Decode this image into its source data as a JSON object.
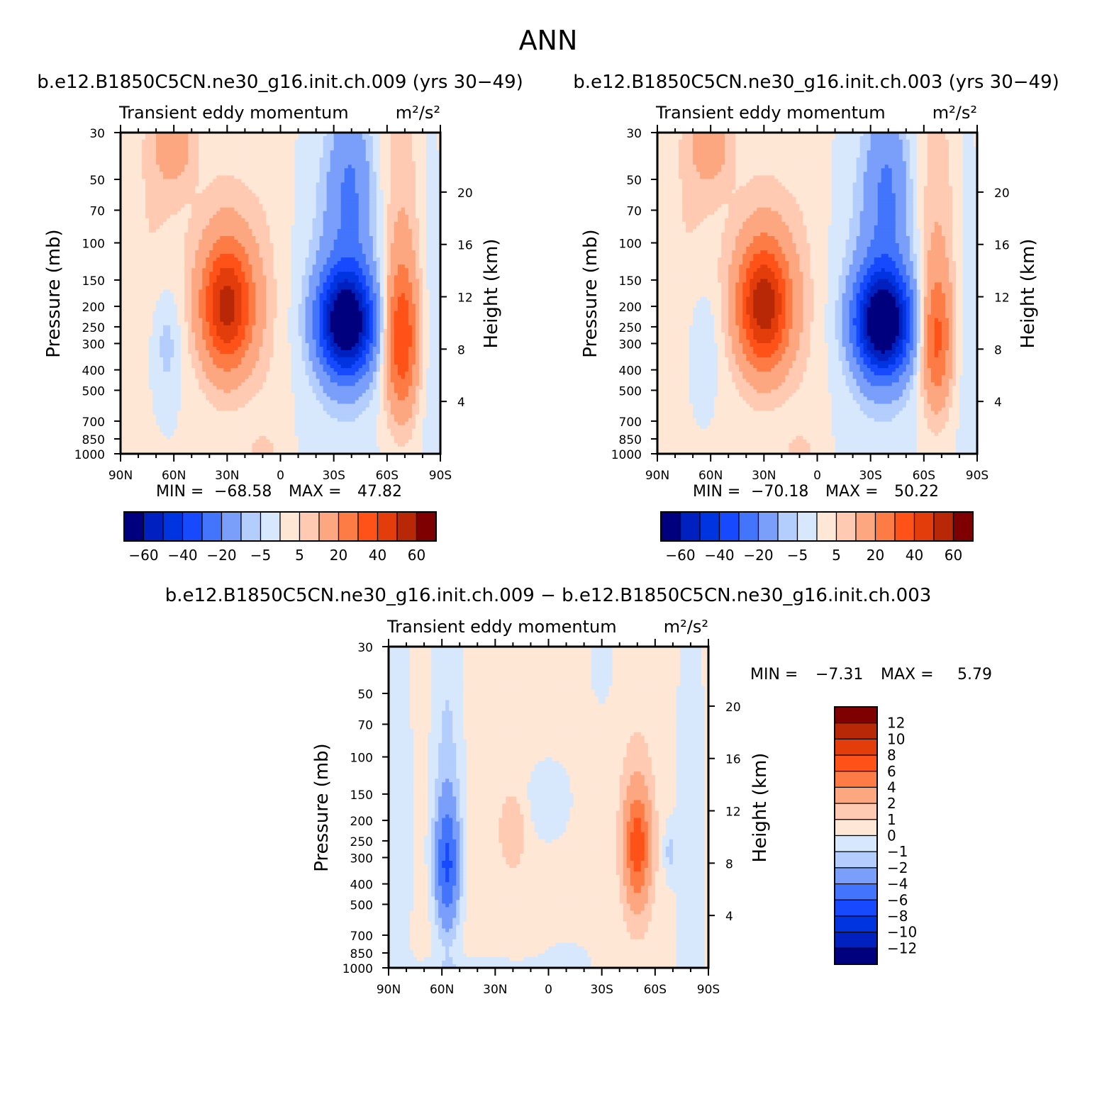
{
  "page": {
    "title": "ANN",
    "bottom_title": "b.e12.B1850C5CN.ne30_g16.init.ch.009 − b.e12.B1850C5CN.ne30_g16.init.ch.003"
  },
  "axes_common": {
    "left_label": "Pressure (mb)",
    "right_label": "Height (km)",
    "pressure_ticks": [
      30,
      50,
      70,
      100,
      150,
      200,
      250,
      300,
      400,
      500,
      700,
      850,
      1000
    ],
    "height_ticks": [
      4,
      8,
      12,
      16,
      20
    ],
    "lat_ticks": [
      "90N",
      "60N",
      "30N",
      "0",
      "30S",
      "60S",
      "90S"
    ],
    "lat_values": [
      90,
      60,
      30,
      0,
      -30,
      -60,
      -90
    ]
  },
  "chart_data": [
    {
      "id": "panel1",
      "type": "heatmap",
      "plot_type": "filled-contour",
      "title": "b.e12.B1850C5CN.ne30_g16.init.ch.009 (yrs 30−49)",
      "subtitle_left": "Transient eddy momentum",
      "units": "m²/s²",
      "xlabel": "",
      "ylabel": "Pressure (mb)",
      "ylabel_right": "Height (km)",
      "xlim": [
        90,
        -90
      ],
      "ylim": [
        1000,
        30
      ],
      "y_scale": "log",
      "min_label": "MIN =",
      "min_value": "−68.58",
      "max_label": "MAX =",
      "max_value": "47.82",
      "min": -68.58,
      "max": 47.82,
      "features": [
        {
          "lat": -37,
          "p": 240,
          "value": -68,
          "lat_width": 11,
          "logp_width": 0.17
        },
        {
          "lat": -37,
          "p": 140,
          "value": -15,
          "lat_width": 13,
          "logp_width": 0.42
        },
        {
          "lat": -40,
          "p": 45,
          "value": -16,
          "lat_width": 9,
          "logp_width": 0.28
        },
        {
          "lat": 30,
          "p": 200,
          "value": 46,
          "lat_width": 10,
          "logp_width": 0.2
        },
        {
          "lat": 30,
          "p": 150,
          "value": 10,
          "lat_width": 14,
          "logp_width": 0.4
        },
        {
          "lat": 60,
          "p": 32,
          "value": 15,
          "lat_width": 8,
          "logp_width": 0.15
        },
        {
          "lat": 72,
          "p": 80,
          "value": 5,
          "lat_width": 14,
          "logp_width": 0.5
        },
        {
          "lat": -68,
          "p": 290,
          "value": 35,
          "lat_width": 6.5,
          "logp_width": 0.24
        },
        {
          "lat": -68,
          "p": 120,
          "value": 8,
          "lat_width": 7,
          "logp_width": 0.45
        },
        {
          "lat": 64,
          "p": 290,
          "value": -9,
          "lat_width": 6,
          "logp_width": 0.2
        },
        {
          "lat": 7,
          "p": 200,
          "value": 3,
          "lat_width": 8,
          "logp_width": 0.6
        },
        {
          "lat": 10,
          "p": 950,
          "value": 7,
          "lat_width": 5,
          "logp_width": 0.04
        },
        {
          "lat": -55,
          "p": 30,
          "value": 4,
          "lat_width": 20,
          "logp_width": 0.6
        },
        {
          "lat": -84,
          "p": 200,
          "value": -3,
          "lat_width": 4,
          "logp_width": 0.9
        }
      ],
      "colorbar": {
        "levels": [
          -60,
          -50,
          -40,
          -30,
          -20,
          -10,
          -5,
          0,
          5,
          10,
          20,
          30,
          40,
          50,
          60
        ],
        "labels": [
          "−60",
          "−40",
          "−20",
          "−5",
          "5",
          "20",
          "40",
          "60"
        ]
      }
    },
    {
      "id": "panel2",
      "type": "heatmap",
      "plot_type": "filled-contour",
      "title": "b.e12.B1850C5CN.ne30_g16.init.ch.003 (yrs 30−49)",
      "subtitle_left": "Transient eddy momentum",
      "units": "m²/s²",
      "xlabel": "",
      "ylabel": "Pressure (mb)",
      "ylabel_right": "Height (km)",
      "xlim": [
        90,
        -90
      ],
      "ylim": [
        1000,
        30
      ],
      "y_scale": "log",
      "min_label": "MIN =",
      "min_value": "−70.18",
      "max_label": "MAX =",
      "max_value": "50.22",
      "min": -70.18,
      "max": 50.22,
      "features": [
        {
          "lat": -37,
          "p": 240,
          "value": -70,
          "lat_width": 11,
          "logp_width": 0.17
        },
        {
          "lat": -37,
          "p": 140,
          "value": -15,
          "lat_width": 13,
          "logp_width": 0.42
        },
        {
          "lat": -40,
          "p": 45,
          "value": -16,
          "lat_width": 9,
          "logp_width": 0.28
        },
        {
          "lat": 30,
          "p": 200,
          "value": 49,
          "lat_width": 10,
          "logp_width": 0.2
        },
        {
          "lat": 30,
          "p": 150,
          "value": 10,
          "lat_width": 14,
          "logp_width": 0.4
        },
        {
          "lat": 60,
          "p": 32,
          "value": 15,
          "lat_width": 8,
          "logp_width": 0.15
        },
        {
          "lat": 72,
          "p": 80,
          "value": 5,
          "lat_width": 14,
          "logp_width": 0.5
        },
        {
          "lat": -67,
          "p": 290,
          "value": 28,
          "lat_width": 6,
          "logp_width": 0.22
        },
        {
          "lat": -67,
          "p": 120,
          "value": 8,
          "lat_width": 7,
          "logp_width": 0.45
        },
        {
          "lat": 64,
          "p": 290,
          "value": -7,
          "lat_width": 6,
          "logp_width": 0.2
        },
        {
          "lat": 7,
          "p": 200,
          "value": 3,
          "lat_width": 8,
          "logp_width": 0.6
        },
        {
          "lat": 10,
          "p": 950,
          "value": 7,
          "lat_width": 5,
          "logp_width": 0.04
        },
        {
          "lat": -55,
          "p": 30,
          "value": 4,
          "lat_width": 20,
          "logp_width": 0.6
        },
        {
          "lat": -84,
          "p": 200,
          "value": -3,
          "lat_width": 4,
          "logp_width": 0.9
        }
      ],
      "colorbar": {
        "levels": [
          -60,
          -50,
          -40,
          -30,
          -20,
          -10,
          -5,
          0,
          5,
          10,
          20,
          30,
          40,
          50,
          60
        ],
        "labels": [
          "−60",
          "−40",
          "−20",
          "−5",
          "5",
          "20",
          "40",
          "60"
        ]
      }
    },
    {
      "id": "panel3",
      "type": "heatmap",
      "plot_type": "filled-contour",
      "subtitle_left": "Transient eddy momentum",
      "units": "m²/s²",
      "xlabel": "",
      "ylabel": "Pressure (mb)",
      "ylabel_right": "Height (km)",
      "xlim": [
        90,
        -90
      ],
      "ylim": [
        1000,
        30
      ],
      "y_scale": "log",
      "min_label": "MIN =",
      "min_value": "−7.31",
      "max_label": "MAX =",
      "max_value": "5.79",
      "min": -7.31,
      "max": 5.79,
      "base": 0.5,
      "features": [
        {
          "lat": 85,
          "p": 200,
          "value": -1.3,
          "lat_width": 6,
          "logp_width": 1.0
        },
        {
          "lat": 57,
          "p": 60,
          "value": -1.2,
          "lat_width": 6,
          "logp_width": 0.7
        },
        {
          "lat": 57,
          "p": 330,
          "value": -5.5,
          "lat_width": 4.5,
          "logp_width": 0.2
        },
        {
          "lat": 57,
          "p": 220,
          "value": -1.0,
          "lat_width": 7,
          "logp_width": 0.4
        },
        {
          "lat": 20,
          "p": 220,
          "value": 1.6,
          "lat_width": 5,
          "logp_width": 0.12
        },
        {
          "lat": 0,
          "p": 160,
          "value": -1.2,
          "lat_width": 10,
          "logp_width": 0.15
        },
        {
          "lat": -10,
          "p": 900,
          "value": -0.8,
          "lat_width": 12,
          "logp_width": 0.08
        },
        {
          "lat": -50,
          "p": 270,
          "value": 5.7,
          "lat_width": 4.5,
          "logp_width": 0.17
        },
        {
          "lat": -50,
          "p": 220,
          "value": 1.5,
          "lat_width": 6.5,
          "logp_width": 0.3
        },
        {
          "lat": -68,
          "p": 280,
          "value": -1.6,
          "lat_width": 2.5,
          "logp_width": 0.1
        },
        {
          "lat": -80,
          "p": 250,
          "value": -1.3,
          "lat_width": 6,
          "logp_width": 1.0
        },
        {
          "lat": -30,
          "p": 35,
          "value": -1.2,
          "lat_width": 5,
          "logp_width": 0.15
        },
        {
          "lat": 40,
          "p": 1000,
          "value": -1.0,
          "lat_width": 30,
          "logp_width": 0.04
        }
      ],
      "colorbar": {
        "levels": [
          -12,
          -10,
          -8,
          -6,
          -4,
          -2,
          -1,
          0,
          1,
          2,
          4,
          6,
          8,
          10,
          12
        ],
        "labels": [
          "12",
          "10",
          "8",
          "6",
          "4",
          "2",
          "1",
          "0",
          "−1",
          "−2",
          "−4",
          "−6",
          "−8",
          "−10",
          "−12"
        ]
      }
    }
  ],
  "colors": {
    "palette": [
      "#00007f",
      "#0021bf",
      "#0034e0",
      "#1749ff",
      "#4275fb",
      "#7a9ffb",
      "#b3cdfc",
      "#d7e8fd",
      "#ffe7d6",
      "#ffcab1",
      "#fda781",
      "#fd7b44",
      "#ff5219",
      "#e33d0c",
      "#b82806",
      "#7e0000"
    ]
  }
}
